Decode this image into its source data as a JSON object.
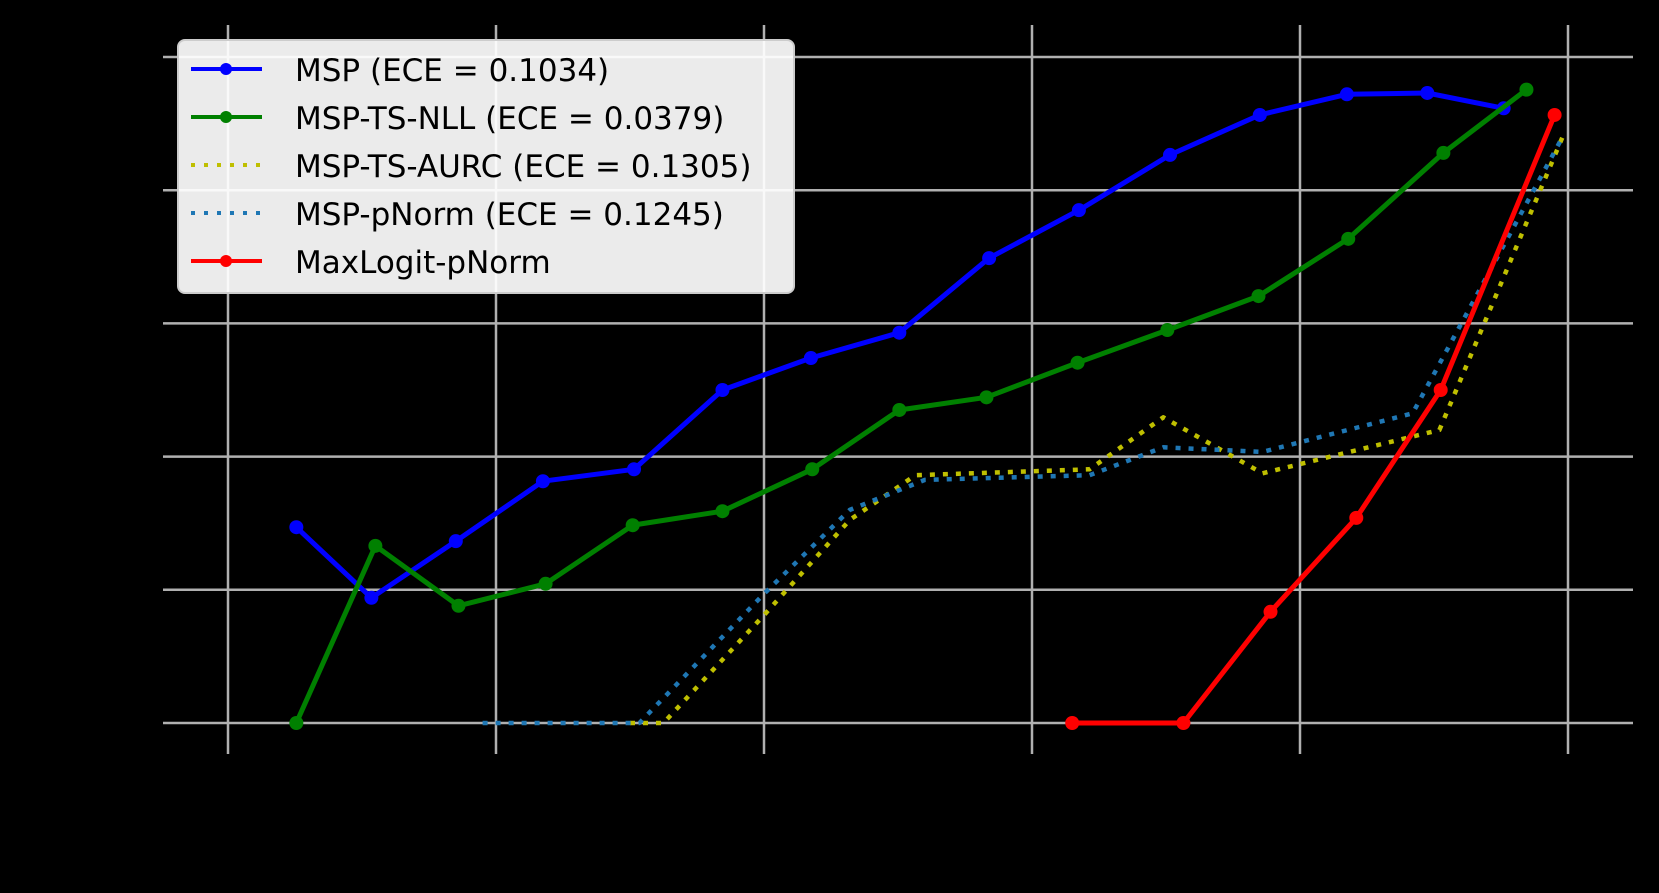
{
  "chart_data": {
    "type": "line",
    "title": "",
    "xlabel": "",
    "ylabel": "",
    "note": "Axis tick labels and axis titles are rendered black on a black (transparent) background and are not legible; values below are normalized to the gridline frame (x: first to last vertical gridline = 0..1, y: bottom to top horizontal gridline = 0..1).",
    "xlim": [
      -0.05,
      1.05
    ],
    "ylim": [
      -0.05,
      1.05
    ],
    "x_gridlines": [
      0,
      0.2,
      0.4,
      0.6,
      0.8,
      1.0
    ],
    "y_gridlines": [
      0,
      0.2,
      0.4,
      0.6,
      0.8,
      1.0
    ],
    "grid": true,
    "legend_position": "upper left",
    "series": [
      {
        "name": "MSP (ECE = 0.1034)",
        "color": "#0000ff",
        "linestyle": "solid",
        "marker": "circle",
        "x": [
          0.051,
          0.107,
          0.17,
          0.235,
          0.303,
          0.369,
          0.435,
          0.501,
          0.568,
          0.635,
          0.703,
          0.77,
          0.835,
          0.895,
          0.952
        ],
        "y": [
          0.294,
          0.188,
          0.273,
          0.363,
          0.381,
          0.5,
          0.548,
          0.586,
          0.698,
          0.77,
          0.853,
          0.913,
          0.944,
          0.946,
          0.923
        ]
      },
      {
        "name": "MSP-TS-NLL (ECE = 0.0379)",
        "color": "#008000",
        "linestyle": "solid",
        "marker": "circle",
        "x": [
          0.051,
          0.11,
          0.172,
          0.237,
          0.302,
          0.369,
          0.436,
          0.501,
          0.566,
          0.634,
          0.701,
          0.769,
          0.836,
          0.907,
          0.969
        ],
        "y": [
          0.0,
          0.266,
          0.176,
          0.209,
          0.297,
          0.318,
          0.381,
          0.47,
          0.489,
          0.541,
          0.59,
          0.641,
          0.727,
          0.856,
          0.951
        ]
      },
      {
        "name": "MSP-TS-AURC (ECE = 0.1305)",
        "color": "#bfbf00",
        "linestyle": "dotted",
        "marker": "none",
        "x": [
          0.3,
          0.325,
          0.4,
          0.464,
          0.513,
          0.643,
          0.698,
          0.772,
          0.837,
          0.904,
          0.996
        ],
        "y": [
          0.0,
          0.0,
          0.162,
          0.305,
          0.372,
          0.381,
          0.459,
          0.375,
          0.407,
          0.44,
          0.88
        ]
      },
      {
        "name": "MSP-pNorm (ECE = 0.1245)",
        "color": "#1f77b4",
        "linestyle": "dotted",
        "marker": "none",
        "x": [
          0.19,
          0.307,
          0.4,
          0.464,
          0.52,
          0.643,
          0.698,
          0.772,
          0.884,
          0.996
        ],
        "y": [
          0.0,
          0.0,
          0.194,
          0.32,
          0.365,
          0.372,
          0.414,
          0.407,
          0.465,
          0.88
        ]
      },
      {
        "name": "MaxLogit-pNorm",
        "color": "#ff0000",
        "linestyle": "solid",
        "marker": "circle",
        "x": [
          0.63,
          0.713,
          0.778,
          0.842,
          0.905,
          0.99
        ],
        "y": [
          0.0,
          0.0,
          0.167,
          0.308,
          0.5,
          0.913
        ]
      }
    ]
  },
  "legend": {
    "items": [
      {
        "label": "MSP (ECE = 0.1034)"
      },
      {
        "label": "MSP-TS-NLL (ECE = 0.0379)"
      },
      {
        "label": "MSP-TS-AURC (ECE = 0.1305)"
      },
      {
        "label": "MSP-pNorm (ECE = 0.1245)"
      },
      {
        "label": "MaxLogit-pNorm"
      }
    ]
  },
  "colors": {
    "background": "#000000",
    "grid": "#b0b0b0",
    "legend_bg": "#ffffff",
    "legend_border": "#cccccc"
  }
}
